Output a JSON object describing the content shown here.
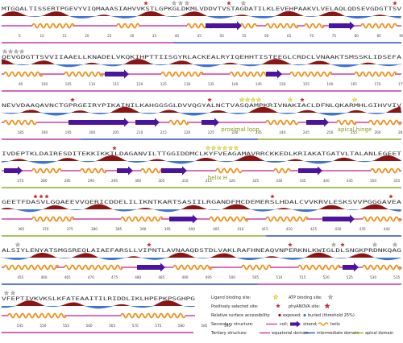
{
  "colors": {
    "coil": "#d23fa3",
    "strand": "#4b149c",
    "helix": "#f0901a",
    "exposed": "#8b1414",
    "buried": "#3f74d1",
    "equatorial_domain": "#c236a8",
    "intermediate_domain": "#2f4fc2",
    "apical_domain": "#8ab12f",
    "ligand_star": "#f3ea52",
    "atp_star": "#b8b8b8",
    "positive_star": "#d93030"
  },
  "rows": [
    {
      "sequence": "MTGQALTISSERTPGEVYVIQMAAASIAHVVKSTLGPKGLDKMLVDDVTVSTAGDATILKLEVEHPAAKVLVELAQLQDSEVGDGTTSV",
      "numbers": [
        "5",
        "10",
        "15",
        "20",
        "25",
        "30",
        "35",
        "40",
        "45",
        "50",
        "55",
        "60",
        "65",
        "70",
        "75",
        "80",
        "85",
        "90"
      ],
      "features": []
    },
    {
      "sequence": "QEVGDGTTSVVIIAAELLKNADELVKQKIHPTTIISGYRLACKEALRYIQEHHTISTEEGLCRDCLVNAAKTSMSSKLIDSEFA",
      "numbers": [
        "95",
        "100",
        "105",
        "110",
        "115",
        "120",
        "125",
        "130",
        "135",
        "140",
        "145",
        "150",
        "155",
        "160",
        "165",
        "170",
        "175",
        "180"
      ],
      "features": []
    },
    {
      "sequence": "NEVVDAAQAVNCTGPRGEIRYPIKAINILKAHGGSGLDVVQGYALNCTVASQAMPKRIVNAKIACLDFNLQKARMHLGIHVVIV",
      "numbers": [
        "185",
        "190",
        "195",
        "200",
        "205",
        "210",
        "215",
        "220",
        "225",
        "230",
        "235",
        "240",
        "245",
        "250",
        "255",
        "260",
        "265",
        "270"
      ],
      "features": [
        "proximal loop",
        "apical hinge"
      ]
    },
    {
      "sequence": "IVDEPTKLDAIRESDITEKKIKKILDAGANVILTTGGIDDMCLKYFVEAGAMAVRRCKKEDLKRIAKATGATVLTALANLEGEET",
      "numbers": [
        "275",
        "280",
        "285",
        "290",
        "295",
        "300",
        "305",
        "310",
        "315",
        "320",
        "325",
        "330",
        "335",
        "340",
        "345",
        "350",
        "355",
        "360"
      ],
      "features": [
        "helix H"
      ]
    },
    {
      "sequence": "GEETFDASVLGQAEEVVQERICDDELILIKNTKARTSASIILRGANDFMCDEMERSLHDALCVVKRVLESKSVVPGGGAVEA",
      "numbers": [
        "365",
        "370",
        "375",
        "380",
        "385",
        "390",
        "395",
        "400",
        "405",
        "410",
        "415",
        "420",
        "425",
        "430",
        "435",
        "440",
        "445",
        "450"
      ],
      "features": []
    },
    {
      "sequence": "ALSIYLENYATSMGSREQLAIAEFARSLLVIPNTLAVNAAQDSTDLVAKLRAFHNEAQVNPERKNLKWIGLDLSNGKPRDNKQAG",
      "numbers": [
        "455",
        "460",
        "465",
        "470",
        "475",
        "480",
        "485",
        "490",
        "495",
        "500",
        "505",
        "510",
        "515",
        "520",
        "525",
        "530",
        "535",
        "540"
      ],
      "features": []
    },
    {
      "sequence": "VFEPTIVKVKSLKFATEAAITILRIDDLIKLHPEPKPSGHPG",
      "numbers": [
        "545",
        "550",
        "555",
        "560",
        "565",
        "570",
        "575",
        "580",
        "585",
        "590"
      ],
      "features": []
    }
  ],
  "legend": {
    "ligand": "Ligand binding site:",
    "atp": "ATP binding site:",
    "positive": "Positively selected site:",
    "phylanova": "phyANOVA site:",
    "rsa": "Relative surface accessibility:",
    "exposed": "exposed;",
    "buried": "buried (threshold 25%)",
    "secondary": "Secondary structure:",
    "coil": "coil;",
    "strand": "strand;",
    "helix": "helix",
    "tertiary": "Tertiary structure:",
    "equatorial": "equatorial domain",
    "intermediate": "intermediate domain",
    "apical": "apical domain"
  }
}
